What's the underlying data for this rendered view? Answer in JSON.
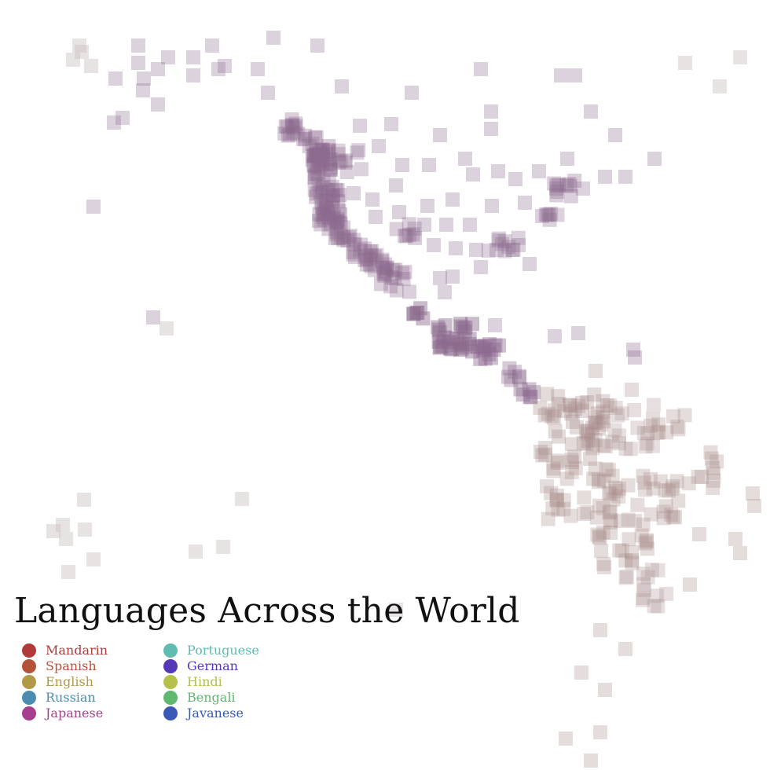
{
  "title": "Languages Across the World",
  "legend": [
    {
      "label": "Mandarin",
      "color": "#b03a3a"
    },
    {
      "label": "Spanish",
      "color": "#b5523a"
    },
    {
      "label": "English",
      "color": "#b09a45"
    },
    {
      "label": "Russian",
      "color": "#4a8db0"
    },
    {
      "label": "Japanese",
      "color": "#a83f8c"
    },
    {
      "label": "Portuguese",
      "color": "#5ebcb0"
    },
    {
      "label": "German",
      "color": "#5538b5"
    },
    {
      "label": "Hindi",
      "color": "#b5c04a"
    },
    {
      "label": "Bengali",
      "color": "#5eb86e"
    },
    {
      "label": "Javanese",
      "color": "#3a58b5"
    }
  ],
  "map": {
    "marker_shape": "square",
    "region_colors": {
      "north_america": "#8c6a8f",
      "south_america": "#a88d8c",
      "other": "#c9bcbc"
    }
  }
}
